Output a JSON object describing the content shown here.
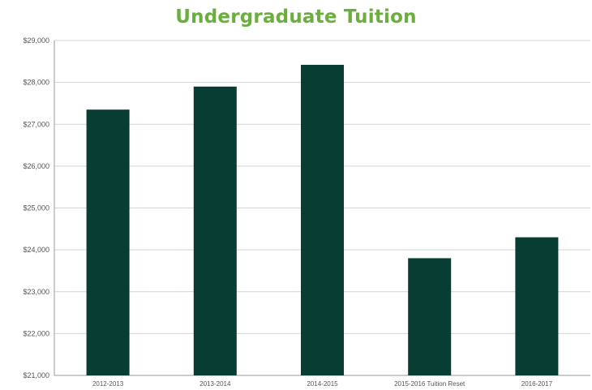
{
  "chart_data": {
    "type": "bar",
    "title": "Undergraduate Tuition",
    "xlabel": "",
    "ylabel": "",
    "categories": [
      "2012-2013",
      "2013-2014",
      "2014-2015",
      "2015-2016 Tuition Reset",
      "2016-2017"
    ],
    "values": [
      27350,
      27900,
      28420,
      23800,
      24300
    ],
    "ylim": [
      21000,
      29000
    ],
    "yticks": [
      21000,
      22000,
      23000,
      24000,
      25000,
      26000,
      27000,
      28000,
      29000
    ],
    "ytick_labels": [
      "$21,000",
      "$22,000",
      "$23,000",
      "$24,000",
      "$25,000",
      "$26,000",
      "$27,000",
      "$28,000",
      "$29,000"
    ],
    "grid": true,
    "legend": "none",
    "colors": {
      "bar": "#073d33",
      "title": "#6aae3c",
      "grid": "#d4d4d4",
      "axis": "#9a9a9a"
    }
  }
}
